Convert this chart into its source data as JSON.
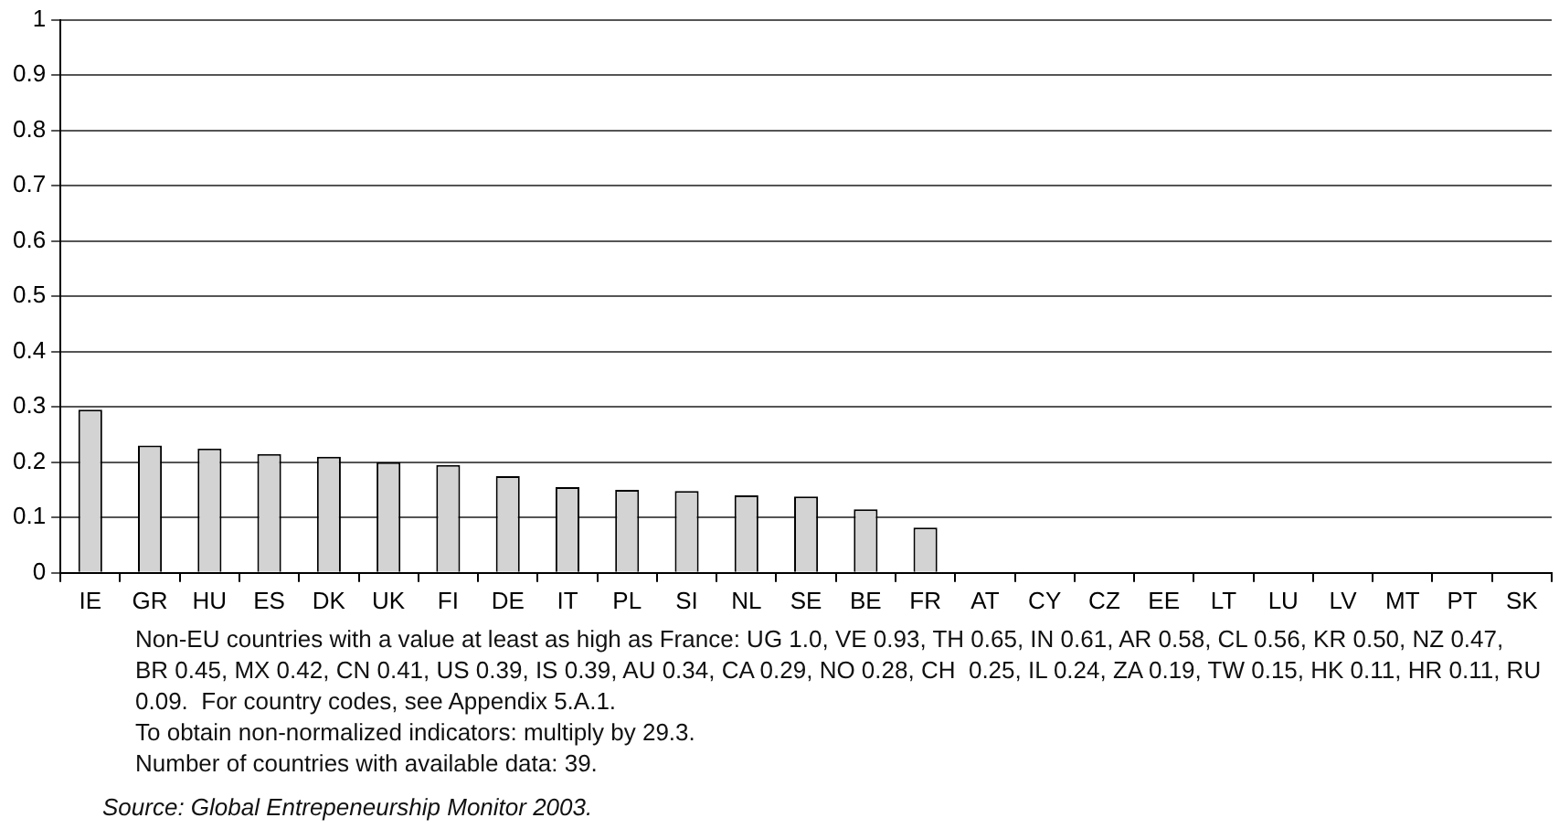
{
  "chart_data": {
    "type": "bar",
    "categories": [
      "IE",
      "GR",
      "HU",
      "ES",
      "DK",
      "UK",
      "FI",
      "DE",
      "IT",
      "PL",
      "SI",
      "NL",
      "SE",
      "BE",
      "FR",
      "AT",
      "CY",
      "CZ",
      "EE",
      "LT",
      "LU",
      "LV",
      "MT",
      "PT",
      "SK"
    ],
    "values": [
      0.295,
      0.23,
      0.225,
      0.215,
      0.21,
      0.2,
      0.195,
      0.175,
      0.155,
      0.15,
      0.148,
      0.14,
      0.138,
      0.115,
      0.082,
      null,
      null,
      null,
      null,
      null,
      null,
      null,
      null,
      null,
      null
    ],
    "color": "#d3d3d3",
    "ylim": [
      0,
      1
    ],
    "yticks": [
      0,
      0.1,
      0.2,
      0.3,
      0.4,
      0.5,
      0.6,
      0.7,
      0.8,
      0.9,
      1
    ],
    "grid": "y",
    "legend": false,
    "annotations": [
      "Non-EU countries with a value at least as high as France: UG 1.0, VE 0.93, TH 0.65, IN 0.61, AR 0.58, CL 0.56, KR 0.50, NZ 0.47, BR 0.45, MX 0.42, CN 0.41, US 0.39, IS 0.39, AU 0.34, CA 0.29, NO 0.28, CH  0.25, IL 0.24, ZA 0.19, TW 0.15, HK 0.11, HR 0.11, RU 0.09.  For country codes, see Appendix 5.A.1.",
      "To obtain non-normalized indicators: multiply by 29.3.",
      "Number of countries with available data: 39.",
      "Source: Global Entrepeneurship Monitor 2003."
    ]
  }
}
